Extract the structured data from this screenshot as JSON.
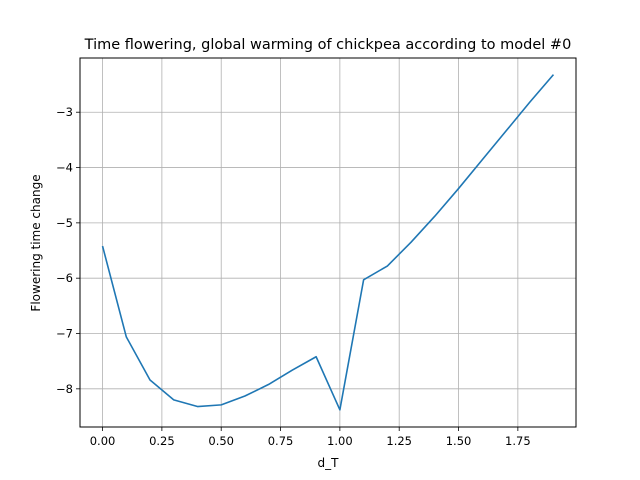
{
  "chart_data": {
    "type": "line",
    "title": "Time flowering, global warming of chickpea according to model #0",
    "xlabel": "d_T",
    "ylabel": "Flowering time change",
    "xlim": [
      -0.095,
      1.995
    ],
    "ylim": [
      -8.69,
      -2.02
    ],
    "xticks": [
      0.0,
      0.25,
      0.5,
      0.75,
      1.0,
      1.25,
      1.5,
      1.75
    ],
    "xtick_labels": [
      "0.00",
      "0.25",
      "0.50",
      "0.75",
      "1.00",
      "1.25",
      "1.50",
      "1.75"
    ],
    "yticks": [
      -8,
      -7,
      -6,
      -5,
      -4,
      -3
    ],
    "ytick_labels": [
      "−8",
      "−7",
      "−6",
      "−5",
      "−4",
      "−3"
    ],
    "grid": true,
    "color": "#1f77b4",
    "series": [
      {
        "x": [
          0.0,
          0.1,
          0.2,
          0.3,
          0.4,
          0.5,
          0.6,
          0.7,
          0.8,
          0.9,
          1.0,
          1.1,
          1.2,
          1.3,
          1.4,
          1.5,
          1.6,
          1.7,
          1.8,
          1.9
        ],
        "values": [
          -5.42,
          -7.06,
          -7.84,
          -8.2,
          -8.32,
          -8.29,
          -8.13,
          -7.92,
          -7.66,
          -7.42,
          -8.38,
          -6.03,
          -5.78,
          -5.35,
          -4.88,
          -4.38,
          -3.86,
          -3.34,
          -2.82,
          -2.32
        ]
      }
    ]
  }
}
